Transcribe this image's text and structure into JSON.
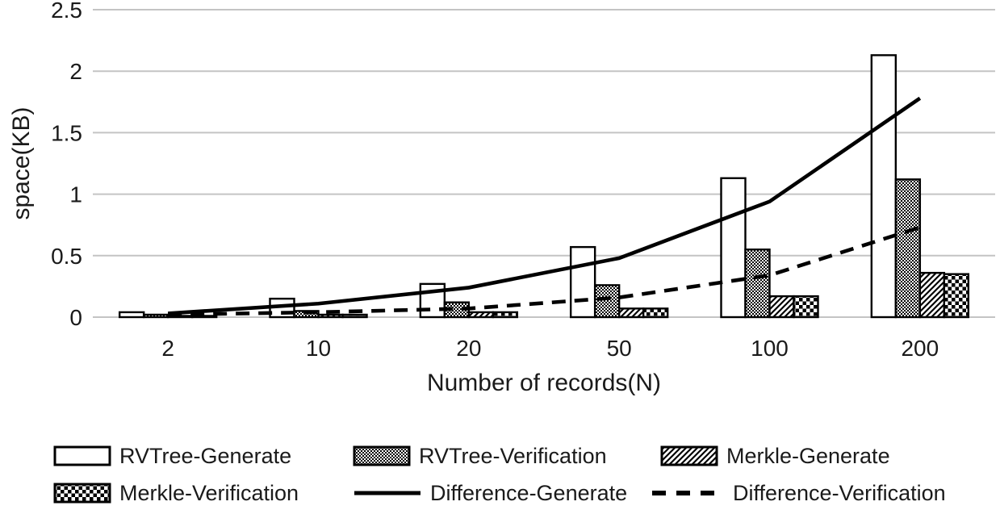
{
  "chart_data": {
    "type": "bar+line combo",
    "title": "",
    "xlabel": "Number of records(N)",
    "ylabel": "space(KB)",
    "categories": [
      "2",
      "10",
      "20",
      "50",
      "100",
      "200"
    ],
    "bar_series": [
      {
        "name": "RVTree-Generate",
        "pattern": "white",
        "values": [
          0.04,
          0.15,
          0.27,
          0.57,
          1.13,
          2.13
        ]
      },
      {
        "name": "RVTree-Verification",
        "pattern": "fine-checker",
        "values": [
          0.02,
          0.05,
          0.12,
          0.26,
          0.55,
          1.12
        ]
      },
      {
        "name": "Merkle-Generate",
        "pattern": "diagonal-hatch",
        "values": [
          0.01,
          0.02,
          0.04,
          0.07,
          0.17,
          0.36
        ]
      },
      {
        "name": "Merkle-Verification",
        "pattern": "checkerboard",
        "values": [
          0.01,
          0.02,
          0.04,
          0.07,
          0.17,
          0.35
        ]
      }
    ],
    "line_series": [
      {
        "name": "Difference-Generate",
        "style": "solid",
        "values": [
          0.03,
          0.11,
          0.24,
          0.48,
          0.94,
          1.78
        ]
      },
      {
        "name": "Difference-Verification",
        "style": "dashed",
        "values": [
          0.02,
          0.04,
          0.07,
          0.16,
          0.34,
          0.73
        ]
      }
    ],
    "ylim": [
      0,
      2.5
    ],
    "yticks": [
      0,
      0.5,
      1,
      1.5,
      2,
      2.5
    ],
    "ytick_labels": [
      "0",
      "0.5",
      "1",
      "1.5",
      "2",
      "2.5"
    ],
    "grid": true,
    "legend_position": "bottom",
    "colors": {
      "ink": "#000000",
      "grid": "#c4c4c4",
      "background": "#ffffff"
    }
  }
}
